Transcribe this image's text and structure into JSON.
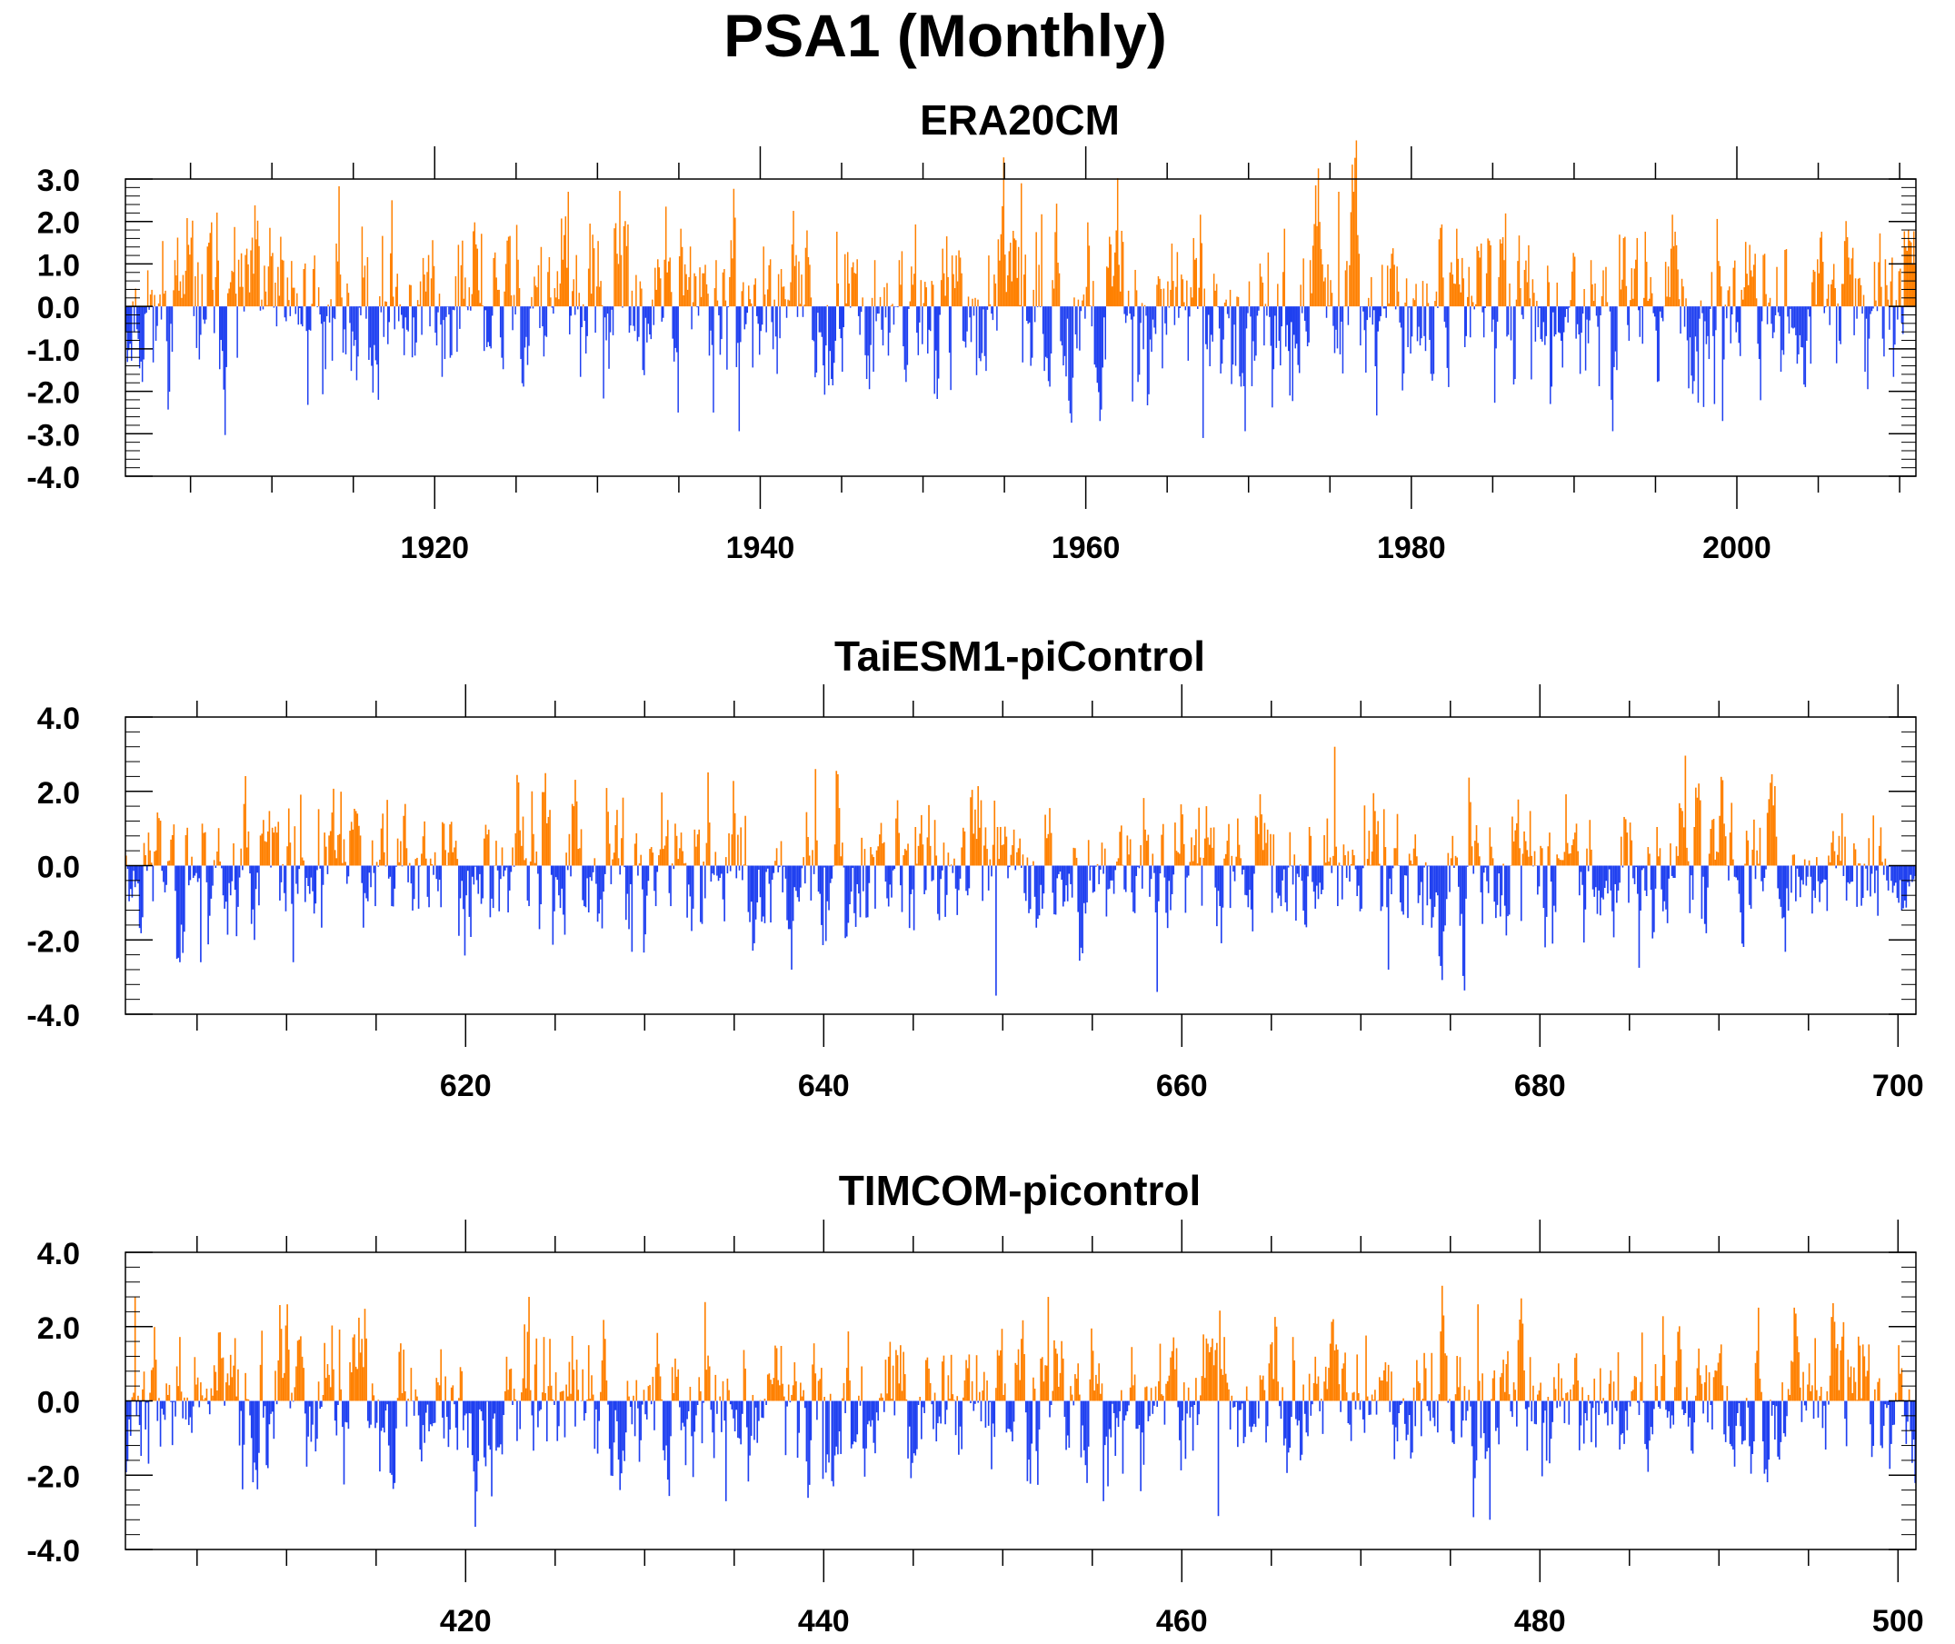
{
  "figure": {
    "title": "PSA1 (Monthly)"
  },
  "colors": {
    "positive": "#ff8000",
    "negative": "#1e3ff0",
    "axis": "#000000"
  },
  "chart_data": [
    {
      "type": "bar",
      "title": "ERA20CM",
      "xlabel": "",
      "ylabel": "",
      "x_range": [
        1901,
        2011
      ],
      "x_tick_labels": [
        "1920",
        "1940",
        "1960",
        "1980",
        "2000"
      ],
      "x_ticks": [
        1920,
        1940,
        1960,
        1980,
        2000
      ],
      "ylim": [
        -4.0,
        3.0
      ],
      "y_ticks": [
        3.0,
        2.0,
        1.0,
        0.0,
        -1.0,
        -2.0,
        -3.0,
        -4.0
      ],
      "y_tick_labels": [
        "3.0",
        "2.0",
        "1.0",
        "0.0",
        "-1.0",
        "-2.0",
        "-3.0",
        "-4.0"
      ],
      "sampling": "monthly",
      "seed": 11,
      "extremes": [
        [
          1956.0,
          2.9
        ],
        [
          1928.2,
          2.7
        ],
        [
          1975.5,
          2.7
        ],
        [
          1917.3,
          2.5
        ],
        [
          1967.2,
          -3.1
        ],
        [
          1934.9,
          -2.5
        ],
        [
          1937.1,
          -2.5
        ],
        [
          1972.5,
          -2.1
        ],
        [
          1916.5,
          -2.2
        ],
        [
          1999.1,
          -2.7
        ],
        [
          1988.5,
          -2.3
        ]
      ],
      "series": [
        {
          "name": "",
          "values": []
        }
      ]
    },
    {
      "type": "bar",
      "title": "TaiESM1-piControl",
      "xlabel": "",
      "ylabel": "",
      "x_range": [
        601,
        701
      ],
      "x_tick_labels": [
        "620",
        "640",
        "660",
        "680",
        "700"
      ],
      "x_ticks": [
        620,
        640,
        660,
        680,
        700
      ],
      "ylim": [
        -4.0,
        4.0
      ],
      "y_ticks": [
        4.0,
        2.0,
        0.0,
        -2.0,
        -4.0
      ],
      "y_tick_labels": [
        "4.0",
        "2.0",
        "0.0",
        "-2.0",
        "-4.0"
      ],
      "sampling": "monthly",
      "seed": 23,
      "extremes": [
        [
          668.5,
          3.2
        ],
        [
          639.5,
          2.6
        ],
        [
          690.2,
          2.3
        ],
        [
          649.6,
          -3.5
        ],
        [
          658.6,
          -3.4
        ],
        [
          671.5,
          -2.8
        ],
        [
          605.2,
          -2.6
        ],
        [
          610.3,
          -2.6
        ],
        [
          638.2,
          -2.8
        ]
      ],
      "series": [
        {
          "name": "",
          "values": []
        }
      ]
    },
    {
      "type": "bar",
      "title": "TIMCOM-picontrol",
      "xlabel": "",
      "ylabel": "",
      "x_range": [
        401,
        501
      ],
      "x_tick_labels": [
        "420",
        "440",
        "460",
        "480",
        "500"
      ],
      "x_ticks": [
        420,
        440,
        460,
        480,
        500
      ],
      "ylim": [
        -4.0,
        4.0
      ],
      "y_ticks": [
        4.0,
        2.0,
        0.0,
        -2.0,
        -4.0
      ],
      "y_tick_labels": [
        "4.0",
        "2.0",
        "0.0",
        "-2.0",
        "-4.0"
      ],
      "sampling": "monthly",
      "seed": 37,
      "extremes": [
        [
          401.5,
          2.8
        ],
        [
          423.5,
          2.8
        ],
        [
          452.5,
          2.8
        ],
        [
          476.5,
          2.6
        ],
        [
          455.6,
          -2.7
        ],
        [
          477.2,
          -3.2
        ],
        [
          462.0,
          -3.1
        ],
        [
          434.5,
          -2.7
        ],
        [
          428.6,
          -2.4
        ],
        [
          439.9,
          -2.1
        ]
      ],
      "series": [
        {
          "name": "",
          "values": []
        }
      ]
    }
  ]
}
